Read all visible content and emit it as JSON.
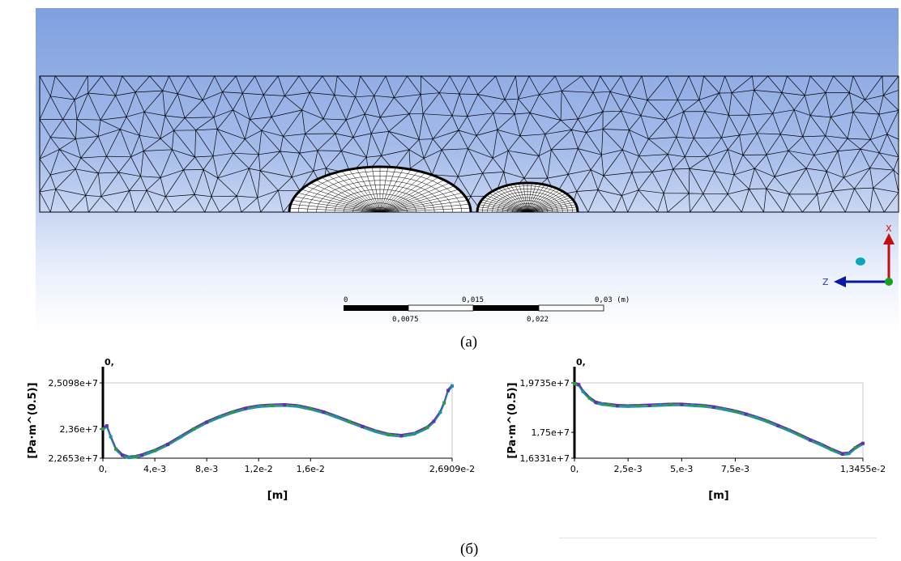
{
  "viewport": {
    "scale_bar": {
      "top_labels": [
        "0",
        "0,015",
        "0,03 (m)"
      ],
      "bottom_labels": [
        "0,0075",
        "0,022"
      ]
    },
    "triad": {
      "x_label": "X",
      "z_label": "Z"
    },
    "colors": {
      "triad_x": "#d01010",
      "triad_z": "#0a1aa0",
      "triad_y": "#1aa020",
      "sphere": "#0aa7b8"
    }
  },
  "captions": {
    "a": "(a)",
    "b": "(б)"
  },
  "chart_data": [
    {
      "type": "line",
      "ylabel": "[Pa·m^(0.5)]",
      "xlabel": "[m]",
      "x_origin_label": "0,",
      "xlim": [
        0,
        0.026909
      ],
      "ylim": [
        22653000,
        25098000
      ],
      "x_ticks": [
        {
          "v": 0,
          "label": "0,"
        },
        {
          "v": 0.004,
          "label": "4,e-3"
        },
        {
          "v": 0.008,
          "label": "8,e-3"
        },
        {
          "v": 0.012,
          "label": "1,2e-2"
        },
        {
          "v": 0.016,
          "label": "1,6e-2"
        },
        {
          "v": 0.026909,
          "label": "2,6909e-2"
        }
      ],
      "y_ticks": [
        {
          "v": 25098000,
          "label": "2,5098e+7"
        },
        {
          "v": 23600000,
          "label": "2,36e+7"
        },
        {
          "v": 22653000,
          "label": "2,2653e+7"
        }
      ],
      "series_colors": [
        "#2b9a3a",
        "#5d2fb8",
        "#1c8fa8"
      ],
      "x": [
        0,
        0.0003,
        0.0006,
        0.001,
        0.0015,
        0.002,
        0.0025,
        0.003,
        0.0035,
        0.004,
        0.005,
        0.006,
        0.007,
        0.008,
        0.009,
        0.01,
        0.011,
        0.012,
        0.013,
        0.014,
        0.015,
        0.016,
        0.017,
        0.018,
        0.019,
        0.02,
        0.021,
        0.022,
        0.023,
        0.024,
        0.025,
        0.0255,
        0.026,
        0.0263,
        0.0266,
        0.026909
      ],
      "y": [
        23600000,
        23700000,
        23350000,
        22950000,
        22750000,
        22680000,
        22700000,
        22750000,
        22830000,
        22900000,
        23100000,
        23350000,
        23600000,
        23820000,
        24000000,
        24150000,
        24270000,
        24340000,
        24370000,
        24380000,
        24350000,
        24260000,
        24150000,
        24000000,
        23840000,
        23680000,
        23530000,
        23420000,
        23380000,
        23450000,
        23650000,
        23850000,
        24150000,
        24450000,
        24850000,
        25000000
      ]
    },
    {
      "type": "line",
      "ylabel": "[Pa·m^(0.5)]",
      "xlabel": "[m]",
      "x_origin_label": "0,",
      "xlim": [
        0,
        0.013455
      ],
      "ylim": [
        16331000,
        19735000
      ],
      "x_ticks": [
        {
          "v": 0,
          "label": "0,"
        },
        {
          "v": 0.0025,
          "label": "2,5e-3"
        },
        {
          "v": 0.005,
          "label": "5,e-3"
        },
        {
          "v": 0.0075,
          "label": "7,5e-3"
        },
        {
          "v": 0.013455,
          "label": "1,3455e-2"
        }
      ],
      "y_ticks": [
        {
          "v": 19735000,
          "label": "1,9735e+7"
        },
        {
          "v": 17500000,
          "label": "1,75e+7"
        },
        {
          "v": 16331000,
          "label": "1,6331e+7"
        }
      ],
      "series_colors": [
        "#2b9a3a",
        "#5d2fb8",
        "#1c8fa8"
      ],
      "x": [
        0,
        0.0002,
        0.0004,
        0.0007,
        0.001,
        0.0013,
        0.0016,
        0.002,
        0.0025,
        0.003,
        0.0035,
        0.004,
        0.0045,
        0.005,
        0.0055,
        0.006,
        0.0065,
        0.007,
        0.0075,
        0.008,
        0.0085,
        0.009,
        0.0095,
        0.01,
        0.0105,
        0.011,
        0.0115,
        0.012,
        0.0125,
        0.0128,
        0.0131,
        0.013455
      ],
      "y": [
        19700000,
        19650000,
        19350000,
        19050000,
        18850000,
        18780000,
        18750000,
        18700000,
        18690000,
        18700000,
        18720000,
        18740000,
        18760000,
        18760000,
        18730000,
        18700000,
        18640000,
        18550000,
        18450000,
        18320000,
        18170000,
        18000000,
        17800000,
        17600000,
        17380000,
        17150000,
        16950000,
        16720000,
        16520000,
        16550000,
        16800000,
        17000000
      ]
    }
  ]
}
